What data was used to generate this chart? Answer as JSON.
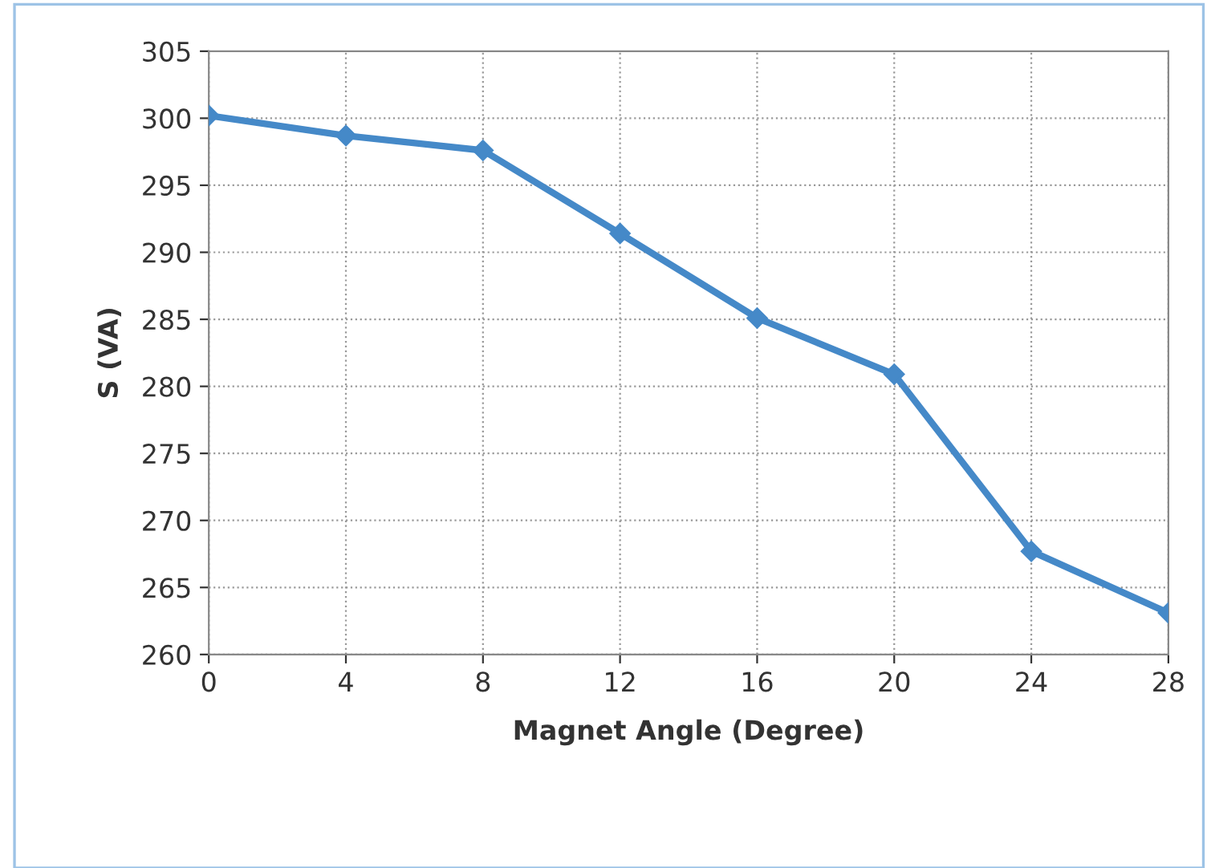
{
  "chart_data": {
    "type": "line",
    "xlabel": "Magnet Angle (Degree)",
    "ylabel": "S (VA)",
    "x": [
      0,
      4,
      8,
      12,
      16,
      20,
      24,
      28
    ],
    "series": [
      {
        "color": "#4589c8",
        "values": [
          300.2,
          298.7,
          297.6,
          291.4,
          285.1,
          280.9,
          267.7,
          263.1
        ]
      }
    ],
    "xlim": [
      0,
      28
    ],
    "xticks": [
      0,
      4,
      8,
      12,
      16,
      20,
      24,
      28
    ],
    "ylim": [
      260,
      305
    ],
    "yticks": [
      260,
      265,
      270,
      275,
      280,
      285,
      290,
      295,
      300,
      305
    ],
    "grid": true,
    "marker": "diamond",
    "line_style": "solid",
    "legend": false
  }
}
